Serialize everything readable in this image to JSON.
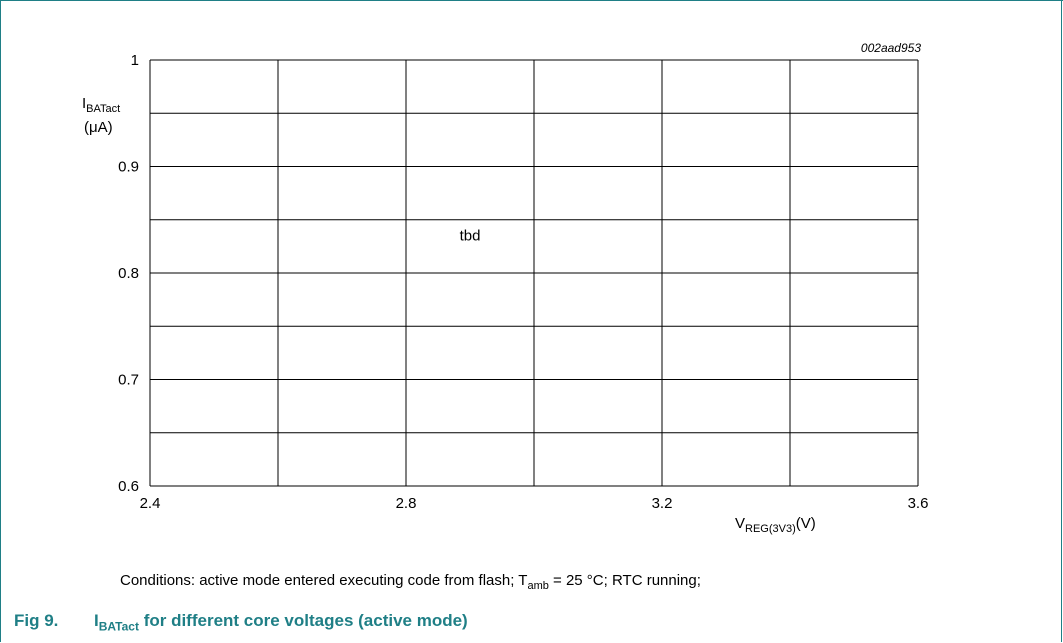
{
  "figure_id": "002aad953",
  "chart_data": {
    "type": "line",
    "series": [],
    "x_ticks": [
      2.4,
      2.8,
      3.2,
      3.6
    ],
    "x_tick_labels": [
      "2.4",
      "2.8",
      "3.2",
      "3.6"
    ],
    "y_ticks": [
      0.6,
      0.7,
      0.8,
      0.9,
      1
    ],
    "y_tick_labels": [
      "0.6",
      "0.7",
      "0.8",
      "0.9",
      "1"
    ],
    "xlim": [
      2.4,
      3.6
    ],
    "ylim": [
      0.6,
      1.0
    ],
    "x_grid": [
      2.4,
      2.6,
      2.8,
      3.0,
      3.2,
      3.4,
      3.6
    ],
    "y_grid": [
      0.6,
      0.65,
      0.7,
      0.75,
      0.8,
      0.85,
      0.9,
      0.95,
      1.0
    ],
    "grid": true,
    "xlabel": {
      "main": "V",
      "sub": "REG(3V3)",
      "unit": "(V)"
    },
    "ylabel": {
      "main": "I",
      "sub": "BATact",
      "unit": "(μA)"
    },
    "annotation": {
      "text": "tbd",
      "x": 2.9,
      "y": 0.835
    }
  },
  "conditions": {
    "prefix": "Conditions: active mode entered executing code from flash; T",
    "sub": "amb",
    "suffix": " = 25 °C; RTC running;"
  },
  "caption": {
    "number": "Fig 9.",
    "main": "I",
    "sub": "BATact",
    "rest": " for different core voltages (active mode)"
  },
  "colors": {
    "accent": "#1f7f86",
    "grid": "#000000"
  }
}
